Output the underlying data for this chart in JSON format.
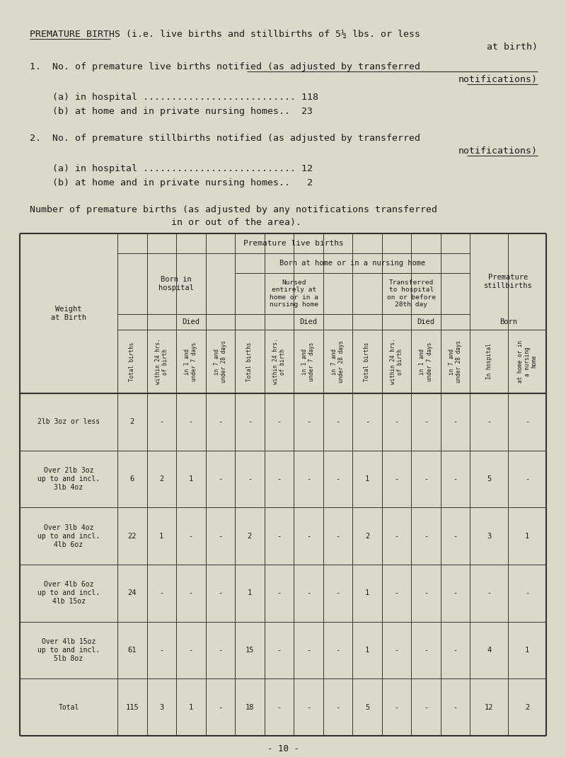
{
  "bg_color": "#ddd9c8",
  "text_color": "#1a1a1a",
  "page_num": "- 10 -",
  "weight_rows": [
    "2lb 3oz or less",
    "Over 2lb 3oz\nup to and incl.\n3lb 4oz",
    "Over 3lb 4oz\nup to and incl.\n4lb 6oz",
    "Over 4lb 6oz\nup to and incl.\n4lb 15oz",
    "Over 4lb 15oz\nup to and incl.\n5lb 8oz",
    "Total"
  ],
  "table_data": [
    [
      "2",
      "-",
      "-",
      "-",
      "-",
      "-",
      "-",
      "-",
      "-",
      "-",
      "-",
      "-",
      "-",
      "-"
    ],
    [
      "6",
      "2",
      "1",
      "-",
      "-",
      "-",
      "-",
      "-",
      "1",
      "-",
      "-",
      "-",
      "5",
      "-"
    ],
    [
      "22",
      "1",
      "-",
      "-",
      "2",
      "-",
      "-",
      "-",
      "2",
      "-",
      "-",
      "-",
      "3",
      "1"
    ],
    [
      "24",
      "-",
      "-",
      "-",
      "1",
      "-",
      "-",
      "-",
      "1",
      "-",
      "-",
      "-",
      "-",
      "-"
    ],
    [
      "61",
      "-",
      "-",
      "-",
      "15",
      "-",
      "-",
      "-",
      "1",
      "-",
      "-",
      "-",
      "4",
      "1"
    ],
    [
      "115",
      "3",
      "1",
      "-",
      "18",
      "-",
      "-",
      "-",
      "5",
      "-",
      "-",
      "-",
      "12",
      "2"
    ]
  ],
  "rot_labels": [
    "Total births",
    "within 24 hrs.\nof birth",
    "in 1 and\nunder 7 days",
    "in 7 and\nunder 28 days",
    "Total births",
    "within 24 hrs.\nof birth",
    "in 1 and\nunder 7 days",
    "in 7 and\nunder 28 days",
    "Total births",
    "within 24 hrs.\nof birth",
    "in 1 and\nunder 7 days",
    "in 7 and\nunder 28 days",
    "In hospital",
    "at home or in\na nursing\nhome"
  ]
}
